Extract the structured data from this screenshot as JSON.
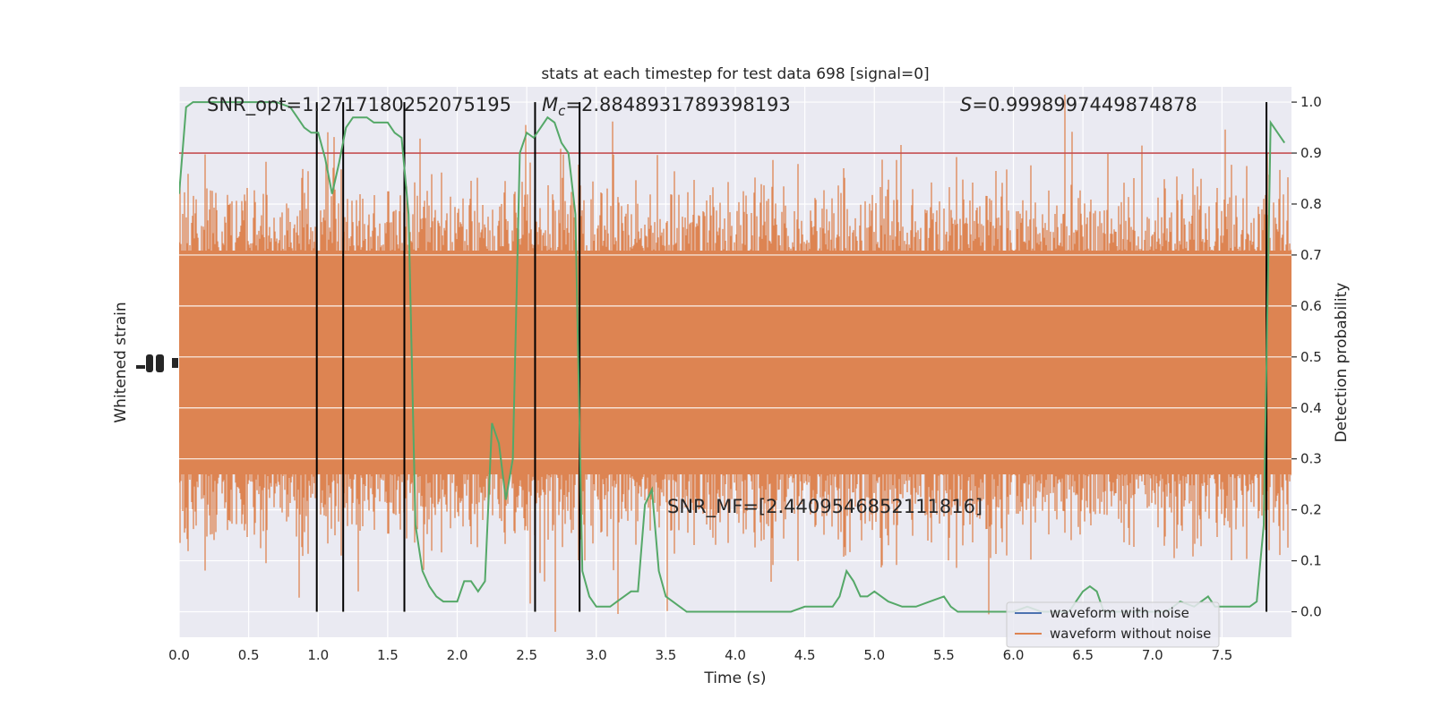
{
  "chart_data": {
    "type": "line",
    "title": "stats at each timestep for test data 698 [signal=0]",
    "xlabel": "Time (s)",
    "ylabel_left": "Whitened strain",
    "ylabel_right": "Detection probability",
    "xlim": [
      0.0,
      8.0
    ],
    "ylim_right": [
      -0.05,
      1.03
    ],
    "x_ticks": [
      "0.0",
      "0.5",
      "1.0",
      "1.5",
      "2.0",
      "2.5",
      "3.0",
      "3.5",
      "4.0",
      "4.5",
      "5.0",
      "5.5",
      "6.0",
      "6.5",
      "7.0",
      "7.5"
    ],
    "right_ticks": [
      "0.0",
      "0.1",
      "0.2",
      "0.3",
      "0.4",
      "0.5",
      "0.6",
      "0.7",
      "0.8",
      "0.9",
      "1.0"
    ],
    "grid": true,
    "legend_position": "lower right",
    "annotations": {
      "snr_opt": "SNR_opt=1.2717180252075195",
      "mc_symbol": "M",
      "mc_subscript": "c",
      "mc_value": "=2.8848931789398193",
      "s_symbol": "S",
      "s_value": "=0.9998997449874878",
      "snr_mf": "SNR_MF=[2.4409546852111816]"
    },
    "threshold": 0.9,
    "trigger_times": [
      0.99,
      1.18,
      1.62,
      2.56,
      2.88,
      7.82
    ],
    "detection_probability": {
      "x": [
        0.0,
        0.05,
        0.1,
        0.15,
        0.2,
        0.3,
        0.4,
        0.5,
        0.6,
        0.7,
        0.8,
        0.85,
        0.9,
        0.95,
        1.0,
        1.05,
        1.1,
        1.15,
        1.2,
        1.25,
        1.3,
        1.35,
        1.4,
        1.45,
        1.5,
        1.55,
        1.6,
        1.65,
        1.7,
        1.75,
        1.8,
        1.85,
        1.9,
        1.95,
        2.0,
        2.05,
        2.1,
        2.15,
        2.2,
        2.25,
        2.3,
        2.35,
        2.4,
        2.45,
        2.5,
        2.55,
        2.6,
        2.65,
        2.7,
        2.75,
        2.8,
        2.85,
        2.9,
        2.95,
        3.0,
        3.05,
        3.1,
        3.15,
        3.2,
        3.25,
        3.3,
        3.35,
        3.4,
        3.45,
        3.5,
        3.55,
        3.6,
        3.65,
        3.7,
        3.75,
        3.8,
        3.85,
        3.9,
        4.0,
        4.1,
        4.2,
        4.3,
        4.4,
        4.5,
        4.6,
        4.7,
        4.75,
        4.8,
        4.85,
        4.9,
        4.95,
        5.0,
        5.05,
        5.1,
        5.2,
        5.3,
        5.4,
        5.5,
        5.55,
        5.6,
        5.7,
        5.8,
        5.9,
        6.0,
        6.1,
        6.2,
        6.3,
        6.4,
        6.5,
        6.55,
        6.6,
        6.65,
        6.7,
        6.8,
        6.9,
        7.0,
        7.1,
        7.2,
        7.3,
        7.4,
        7.45,
        7.5,
        7.55,
        7.6,
        7.65,
        7.7,
        7.75,
        7.8,
        7.85,
        7.9,
        7.95
      ],
      "y": [
        0.82,
        0.99,
        1.0,
        1.0,
        1.0,
        1.0,
        1.0,
        1.0,
        1.0,
        1.0,
        0.99,
        0.97,
        0.95,
        0.94,
        0.94,
        0.89,
        0.82,
        0.88,
        0.95,
        0.97,
        0.97,
        0.97,
        0.96,
        0.96,
        0.96,
        0.94,
        0.93,
        0.78,
        0.17,
        0.08,
        0.05,
        0.03,
        0.02,
        0.02,
        0.02,
        0.06,
        0.06,
        0.04,
        0.06,
        0.37,
        0.33,
        0.22,
        0.3,
        0.9,
        0.94,
        0.93,
        0.95,
        0.97,
        0.96,
        0.92,
        0.9,
        0.78,
        0.08,
        0.03,
        0.01,
        0.01,
        0.01,
        0.02,
        0.03,
        0.04,
        0.04,
        0.21,
        0.24,
        0.08,
        0.03,
        0.02,
        0.01,
        0.0,
        0.0,
        0.0,
        0.0,
        0.0,
        0.0,
        0.0,
        0.0,
        0.0,
        0.0,
        0.0,
        0.01,
        0.01,
        0.01,
        0.03,
        0.08,
        0.06,
        0.03,
        0.03,
        0.04,
        0.03,
        0.02,
        0.01,
        0.01,
        0.02,
        0.03,
        0.01,
        0.0,
        0.0,
        0.0,
        0.0,
        0.0,
        0.01,
        0.0,
        0.0,
        0.0,
        0.04,
        0.05,
        0.04,
        0.0,
        0.0,
        0.0,
        0.0,
        0.0,
        0.0,
        0.02,
        0.01,
        0.03,
        0.01,
        0.01,
        0.01,
        0.01,
        0.01,
        0.01,
        0.02,
        0.17,
        0.96,
        0.94,
        0.92
      ]
    },
    "series": [
      {
        "name": "waveform with noise",
        "color": "#4c72b0"
      },
      {
        "name": "waveform without noise",
        "color": "#dd8452"
      }
    ],
    "colors": {
      "background": "#eaeaf2",
      "noise_fill": "#dd8452",
      "probability": "#55a868",
      "threshold": "#c44e52",
      "trigger": "#000000"
    }
  }
}
